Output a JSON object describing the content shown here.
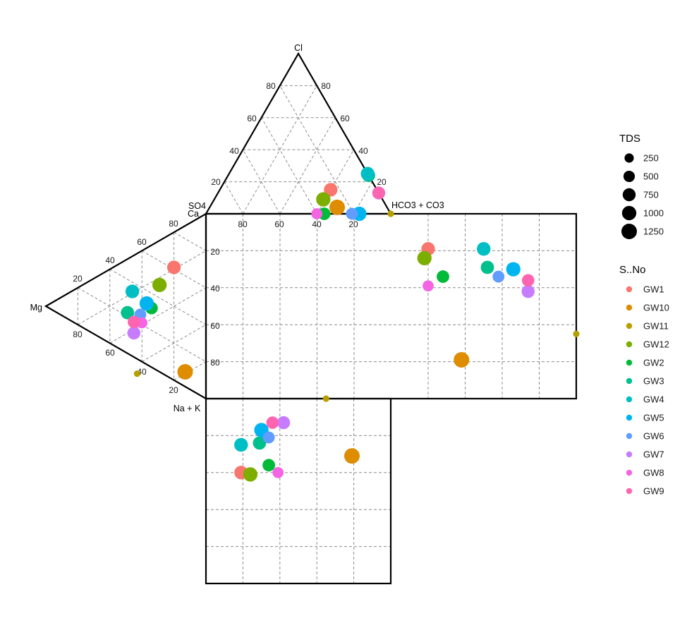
{
  "chart_data": {
    "type": "scatter",
    "subtype": "piper-diagram",
    "title": "",
    "corner_labels": {
      "cl": "Cl",
      "so4": "SO4",
      "ca": "Ca",
      "hco3": "HCO3 + CO3",
      "mg": "Mg",
      "nak": "Na + K"
    },
    "tick_labels": [
      "20",
      "40",
      "60",
      "80"
    ],
    "axis_range": [
      0,
      100
    ],
    "grid": true,
    "legend_position": "right",
    "size_legend": {
      "title": "TDS",
      "values": [
        250,
        500,
        750,
        1000,
        1250
      ]
    },
    "color_legend": {
      "title": "S..No",
      "items": [
        {
          "name": "GW1",
          "color": "#F8766D"
        },
        {
          "name": "GW10",
          "color": "#DE8C00"
        },
        {
          "name": "GW11",
          "color": "#B79F00"
        },
        {
          "name": "GW12",
          "color": "#7CAE00"
        },
        {
          "name": "GW2",
          "color": "#00BA38"
        },
        {
          "name": "GW3",
          "color": "#00C08B"
        },
        {
          "name": "GW4",
          "color": "#00BFC4"
        },
        {
          "name": "GW5",
          "color": "#00B4F0"
        },
        {
          "name": "GW6",
          "color": "#619CFF"
        },
        {
          "name": "GW7",
          "color": "#C77CFF"
        },
        {
          "name": "GW8",
          "color": "#F564E3"
        },
        {
          "name": "GW9",
          "color": "#FF64B0"
        }
      ]
    },
    "samples": [
      {
        "name": "GW1",
        "tds": 860,
        "mg": 20,
        "nak": 19,
        "cl": 15,
        "so4": 25
      },
      {
        "name": "GW10",
        "tds": 1250,
        "mg": 13,
        "nak": 79,
        "cl": 4,
        "so4": 27
      },
      {
        "name": "GW11",
        "tds": 50,
        "mg": 43,
        "nak": 65,
        "cl": 0,
        "so4": 0
      },
      {
        "name": "GW12",
        "tds": 1000,
        "mg": 29,
        "nak": 24,
        "cl": 9,
        "so4": 32
      },
      {
        "name": "GW2",
        "tds": 680,
        "mg": 34,
        "nak": 34,
        "cl": 0,
        "so4": 36
      },
      {
        "name": "GW3",
        "tds": 800,
        "mg": 49,
        "nak": 29,
        "cl": 24,
        "so4": 0
      },
      {
        "name": "GW4",
        "tds": 880,
        "mg": 46,
        "nak": 19,
        "cl": 25,
        "so4": 0
      },
      {
        "name": "GW5",
        "tds": 1000,
        "mg": 37,
        "nak": 30,
        "cl": 0,
        "so4": 17
      },
      {
        "name": "GW6",
        "tds": 580,
        "mg": 41,
        "nak": 34,
        "cl": 0,
        "so4": 21
      },
      {
        "name": "GW7",
        "tds": 760,
        "mg": 45,
        "nak": 42,
        "cl": 13,
        "so4": 0
      },
      {
        "name": "GW8",
        "tds": 460,
        "mg": 40,
        "nak": 39,
        "cl": 0,
        "so4": 40
      },
      {
        "name": "GW9",
        "tds": 660,
        "mg": 45,
        "nak": 36,
        "cl": 13,
        "so4": 0
      }
    ]
  }
}
